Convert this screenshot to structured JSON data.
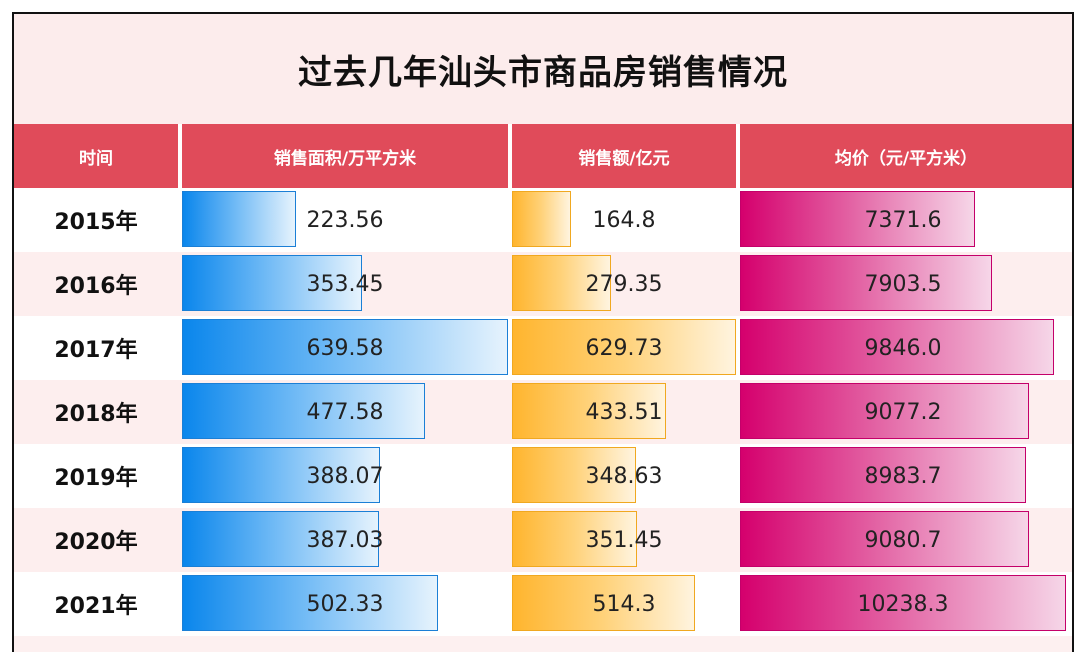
{
  "chart_data": {
    "type": "table",
    "title": "过去几年汕头市商品房销售情况",
    "columns": [
      "时间",
      "销售面积/万平方米",
      "销售额/亿元",
      "均价（元/平方米）"
    ],
    "rows": [
      {
        "year": "2015年",
        "area": "223.56",
        "amount": "164.8",
        "price": "7371.6"
      },
      {
        "year": "2016年",
        "area": "353.45",
        "amount": "279.35",
        "price": "7903.5"
      },
      {
        "year": "2017年",
        "area": "639.58",
        "amount": "629.73",
        "price": "9846.0"
      },
      {
        "year": "2018年",
        "area": "477.58",
        "amount": "433.51",
        "price": "9077.2"
      },
      {
        "year": "2019年",
        "area": "388.07",
        "amount": "348.63",
        "price": "8983.7"
      },
      {
        "year": "2020年",
        "area": "387.03",
        "amount": "351.45",
        "price": "9080.7"
      },
      {
        "year": "2021年",
        "area": "502.33",
        "amount": "514.3",
        "price": "10238.3"
      }
    ],
    "colors": {
      "header": "#e04b5a",
      "area_bar": "#0a86ec",
      "amount_bar": "#ffb52e",
      "price_bar": "#d5006d"
    }
  }
}
